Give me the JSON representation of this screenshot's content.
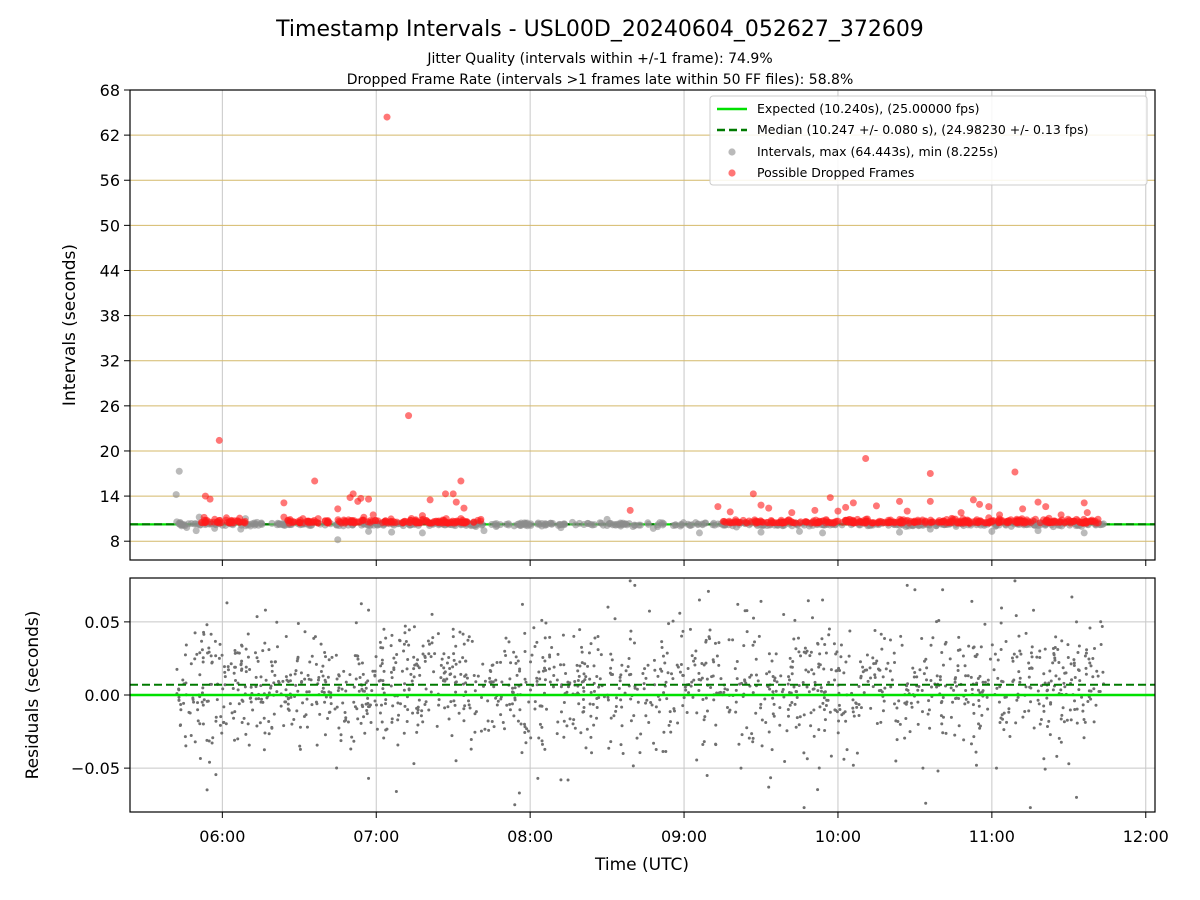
{
  "chart_data": [
    {
      "type": "scatter",
      "title": "Timestamp Intervals - USL00D_20240604_052627_372609",
      "subtitle_lines": [
        "Jitter Quality (intervals within +/-1 frame): 74.9%",
        "Dropped Frame Rate (intervals >1 frames late within 50 FF files): 58.8%"
      ],
      "ylabel": "Intervals (seconds)",
      "xlabel": "",
      "ylim": [
        5.5,
        68
      ],
      "yticks": [
        8,
        14,
        20,
        26,
        32,
        38,
        44,
        50,
        56,
        62,
        68
      ],
      "ytick_labels": [
        "8",
        "14",
        "20",
        "26",
        "32",
        "38",
        "44",
        "50",
        "56",
        "62",
        "68"
      ],
      "xlim_hours": [
        5.4,
        12.06
      ],
      "xticks_hours": [
        6,
        7,
        8,
        9,
        10,
        11,
        12
      ],
      "horizontal_grid_color": "#d4b96a",
      "vertical_grid_color": "#c8c8c8",
      "expected_value": 10.24,
      "median_value": 10.247,
      "legend_position": "top-right",
      "legend": [
        {
          "label": "Expected (10.240s), (25.00000 fps)",
          "style": "solid-line",
          "color": "#00e000"
        },
        {
          "label": "Median (10.247 +/- 0.080 s), (24.98230 +/- 0.13 fps)",
          "style": "dashed-line",
          "color": "#007a00"
        },
        {
          "label": "Intervals, max (64.443s), min (8.225s)",
          "style": "marker",
          "color": "#8c8c8c"
        },
        {
          "label": "Possible Dropped Frames",
          "style": "marker",
          "color": "#ff1a1a"
        }
      ],
      "series": [
        {
          "name": "Intervals, max (64.443s), min (8.225s)",
          "color": "#8c8c8c",
          "x_hours_range": [
            5.7,
            11.73
          ],
          "y_baseline": 10.24,
          "points": [
            [
              5.7,
              14.2
            ],
            [
              5.72,
              17.3
            ],
            [
              5.85,
              11.2
            ],
            [
              5.83,
              9.4
            ],
            [
              5.95,
              9.7
            ],
            [
              6.15,
              11.0
            ],
            [
              6.12,
              9.6
            ],
            [
              6.75,
              8.2
            ],
            [
              6.95,
              9.3
            ],
            [
              7.1,
              9.2
            ],
            [
              7.3,
              9.1
            ],
            [
              7.7,
              9.4
            ],
            [
              8.5,
              10.9
            ],
            [
              9.1,
              9.1
            ],
            [
              9.5,
              9.2
            ],
            [
              9.75,
              9.3
            ],
            [
              9.9,
              9.1
            ],
            [
              10.4,
              9.2
            ],
            [
              11.0,
              9.3
            ],
            [
              11.3,
              9.4
            ],
            [
              11.6,
              9.1
            ],
            [
              10.6,
              9.6
            ],
            [
              8.2,
              9.8
            ],
            [
              8.8,
              9.7
            ]
          ]
        },
        {
          "name": "Possible Dropped Frames",
          "color": "#ff1a1a",
          "dense_bands_hours": [
            [
              5.85,
              6.15
            ],
            [
              6.42,
              6.7
            ],
            [
              6.75,
              7.68
            ],
            [
              9.25,
              11.7
            ]
          ],
          "points": [
            [
              5.89,
              14.0
            ],
            [
              5.92,
              13.6
            ],
            [
              5.98,
              21.4
            ],
            [
              6.4,
              13.1
            ],
            [
              6.4,
              11.2
            ],
            [
              6.6,
              16.0
            ],
            [
              6.75,
              12.3
            ],
            [
              6.83,
              13.8
            ],
            [
              6.85,
              14.3
            ],
            [
              6.88,
              13.3
            ],
            [
              6.9,
              13.7
            ],
            [
              6.95,
              13.6
            ],
            [
              6.98,
              11.5
            ],
            [
              7.07,
              64.4
            ],
            [
              7.21,
              24.7
            ],
            [
              7.3,
              11.4
            ],
            [
              7.35,
              13.5
            ],
            [
              7.45,
              14.3
            ],
            [
              7.5,
              14.3
            ],
            [
              7.52,
              13.2
            ],
            [
              7.55,
              16.0
            ],
            [
              7.57,
              12.4
            ],
            [
              7.68,
              10.9
            ],
            [
              8.65,
              12.1
            ],
            [
              9.22,
              12.6
            ],
            [
              9.3,
              11.9
            ],
            [
              9.45,
              14.3
            ],
            [
              9.5,
              12.8
            ],
            [
              9.55,
              12.4
            ],
            [
              9.7,
              11.8
            ],
            [
              9.85,
              12.1
            ],
            [
              9.95,
              13.8
            ],
            [
              10.0,
              12.0
            ],
            [
              10.05,
              12.5
            ],
            [
              10.1,
              13.1
            ],
            [
              10.18,
              19.0
            ],
            [
              10.25,
              12.7
            ],
            [
              10.4,
              13.3
            ],
            [
              10.45,
              12.0
            ],
            [
              10.6,
              17.0
            ],
            [
              10.6,
              13.3
            ],
            [
              10.8,
              11.8
            ],
            [
              10.88,
              13.5
            ],
            [
              10.92,
              12.9
            ],
            [
              10.98,
              12.6
            ],
            [
              11.05,
              11.5
            ],
            [
              11.15,
              17.2
            ],
            [
              11.2,
              12.3
            ],
            [
              11.3,
              13.2
            ],
            [
              11.35,
              12.6
            ],
            [
              11.45,
              11.5
            ],
            [
              11.55,
              10.9
            ],
            [
              11.6,
              13.1
            ],
            [
              11.62,
              11.8
            ]
          ]
        },
        {
          "name": "Expected (10.240s), (25.00000 fps)",
          "type": "hline",
          "color": "#00e000",
          "value": 10.24
        },
        {
          "name": "Median (10.247 +/- 0.080 s), (24.98230 +/- 0.13 fps)",
          "type": "hline",
          "color": "#007a00",
          "value": 10.247
        }
      ]
    },
    {
      "type": "scatter",
      "title": "",
      "xlabel": "Time (UTC)",
      "ylabel": "Residuals (seconds)",
      "ylim": [
        -0.08,
        0.08
      ],
      "yticks": [
        -0.05,
        0.0,
        0.05
      ],
      "ytick_labels": [
        "−0.05",
        "0.00",
        "0.05"
      ],
      "xlim_hours": [
        5.4,
        12.06
      ],
      "xticks_hours": [
        6,
        7,
        8,
        9,
        10,
        11,
        12
      ],
      "xtick_labels": [
        "06:00",
        "07:00",
        "08:00",
        "09:00",
        "10:00",
        "11:00",
        "12:00"
      ],
      "grid_color": "#c8c8c8",
      "expected_line": {
        "value": 0.0,
        "color": "#00e000"
      },
      "median_line": {
        "value": 0.007,
        "color": "#007a00"
      },
      "series": [
        {
          "name": "",
          "color": "#707070",
          "x_hours_range": [
            5.7,
            11.73
          ],
          "y_typical_range": [
            -0.04,
            0.05
          ],
          "points": [
            [
              5.9,
              0.048
            ],
            [
              6.03,
              0.063
            ],
            [
              6.28,
              0.058
            ],
            [
              6.95,
              0.058
            ],
            [
              7.05,
              0.045
            ],
            [
              7.5,
              0.045
            ],
            [
              7.95,
              0.062
            ],
            [
              7.9,
              -0.075
            ],
            [
              7.93,
              -0.067
            ],
            [
              8.05,
              -0.057
            ],
            [
              8.2,
              -0.058
            ],
            [
              8.65,
              0.078
            ],
            [
              8.68,
              0.075
            ],
            [
              9.1,
              0.065
            ],
            [
              9.15,
              -0.055
            ],
            [
              9.5,
              0.064
            ],
            [
              9.37,
              -0.05
            ],
            [
              9.55,
              -0.063
            ],
            [
              9.78,
              -0.077
            ],
            [
              9.9,
              0.065
            ],
            [
              10.1,
              -0.048
            ],
            [
              10.45,
              0.075
            ],
            [
              10.5,
              0.072
            ],
            [
              10.57,
              -0.074
            ],
            [
              10.68,
              0.072
            ],
            [
              10.87,
              0.064
            ],
            [
              11.03,
              -0.05
            ],
            [
              11.15,
              0.078
            ],
            [
              11.25,
              -0.077
            ],
            [
              11.52,
              0.067
            ],
            [
              11.55,
              0.05
            ],
            [
              11.55,
              -0.07
            ],
            [
              11.5,
              -0.047
            ],
            [
              6.95,
              -0.057
            ],
            [
              6.1,
              -0.03
            ],
            [
              5.9,
              -0.031
            ],
            [
              10.65,
              -0.052
            ],
            [
              10.9,
              -0.048
            ],
            [
              9.72,
              0.051
            ]
          ]
        }
      ]
    }
  ]
}
